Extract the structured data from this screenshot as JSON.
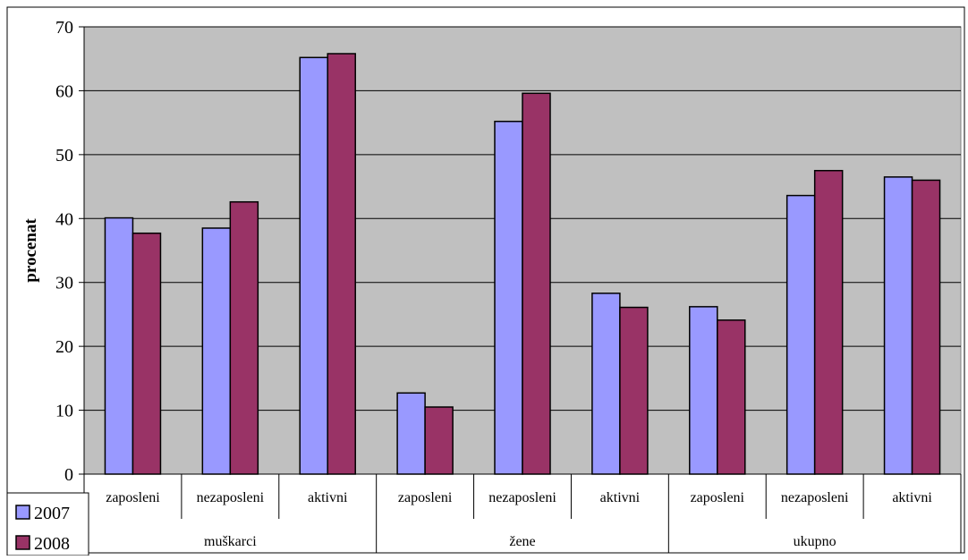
{
  "chart_data": {
    "type": "bar",
    "title": "",
    "xlabel": "",
    "ylabel": "procenat",
    "ylim": [
      0,
      70
    ],
    "yticks": [
      0,
      10,
      20,
      30,
      40,
      50,
      60,
      70
    ],
    "grid": true,
    "legend_position": "bottom-left",
    "groups": [
      {
        "label": "muškarci",
        "span": 3
      },
      {
        "label": "žene",
        "span": 3
      },
      {
        "label": "ukupno",
        "span": 3
      }
    ],
    "categories": [
      "zaposleni",
      "nezaposleni",
      "aktivni",
      "zaposleni",
      "nezaposleni",
      "aktivni",
      "zaposleni",
      "nezaposleni",
      "aktivni"
    ],
    "series": [
      {
        "name": "2007",
        "color": "#9999ff",
        "values": [
          40.1,
          38.5,
          65.2,
          12.7,
          55.2,
          28.3,
          26.2,
          43.6,
          46.5
        ]
      },
      {
        "name": "2008",
        "color": "#993366",
        "values": [
          37.7,
          42.6,
          65.8,
          10.5,
          59.6,
          26.1,
          24.1,
          47.5,
          46.0
        ]
      }
    ],
    "plot_background": "#c0c0c0"
  }
}
